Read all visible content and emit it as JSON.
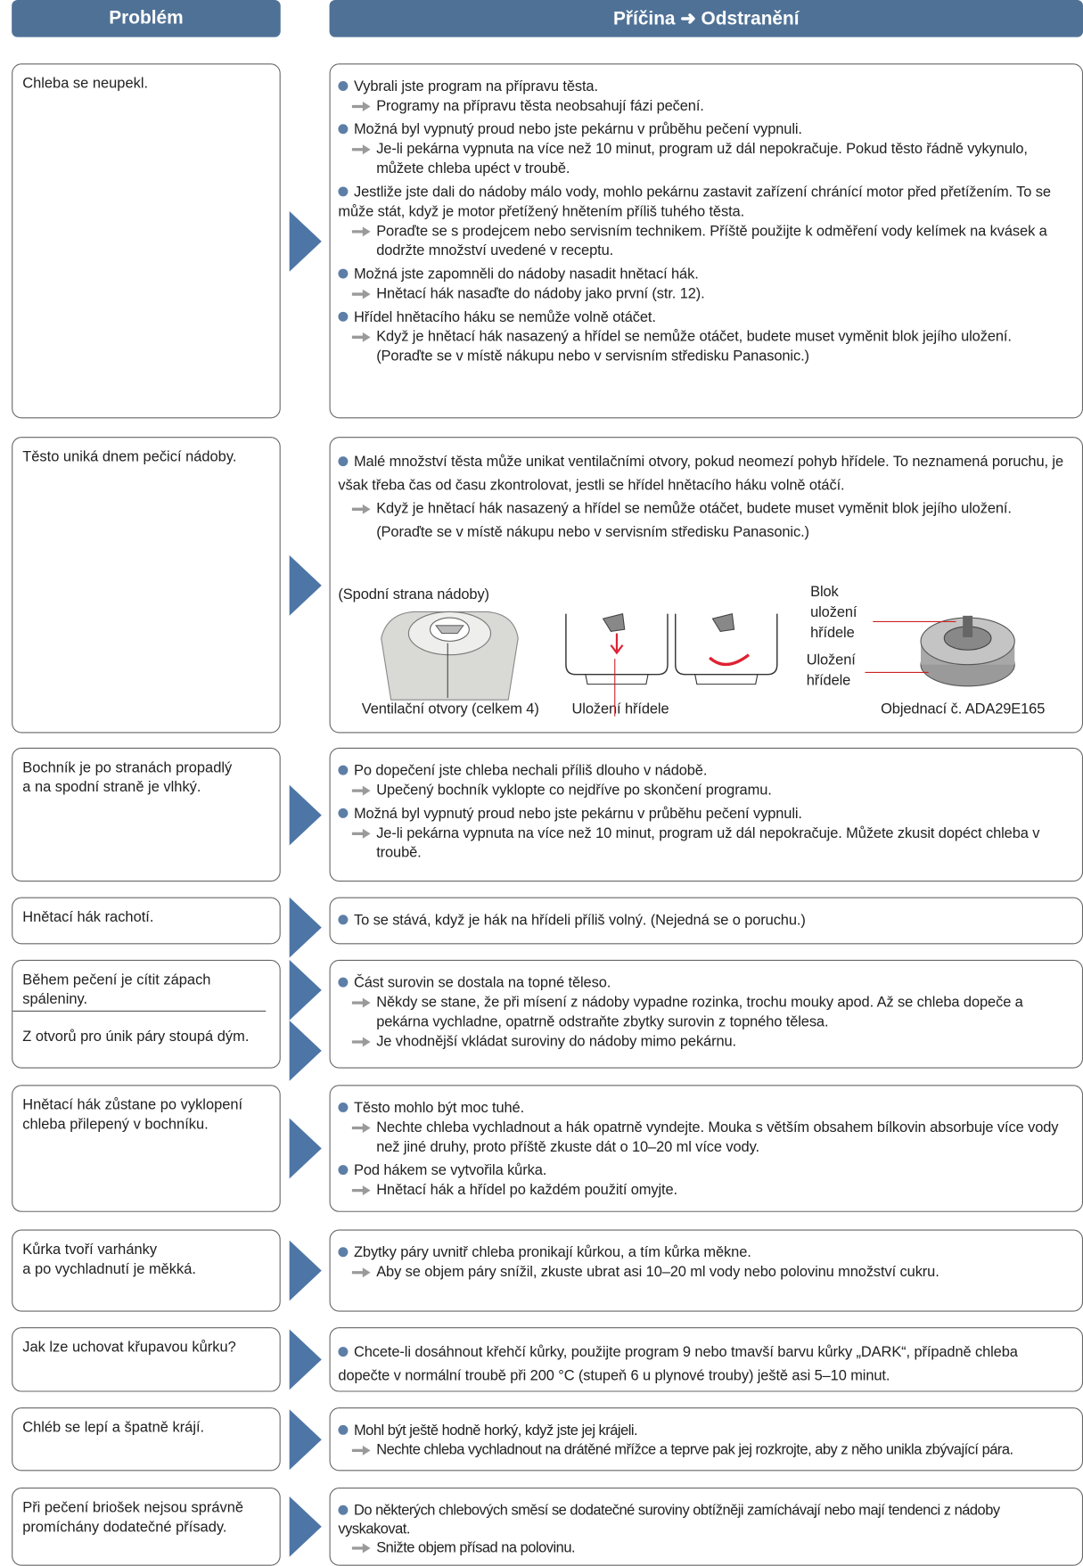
{
  "header": {
    "problem": "Problém",
    "solution": "Příčina ➜ Odstranění"
  },
  "rows": [
    {
      "problems": [
        "Chleba se neupekl."
      ],
      "items": [
        {
          "cause": "Vybrali jste program na přípravu těsta.",
          "remedies": [
            "Programy na přípravu těsta neobsahují fázi pečení."
          ]
        },
        {
          "cause": "Možná byl vypnutý proud nebo jste pekárnu v průběhu pečení vypnuli.",
          "remedies": [
            "Je-li pekárna vypnuta na více než 10 minut, program už dál nepokračuje. Pokud těsto řádně vykynulo, můžete chleba upéct v troubě."
          ]
        },
        {
          "cause": "Jestliže jste dali do nádoby málo vody, mohlo pekárnu zastavit zařízení chránící motor před přetížením. To se může stát, když je motor přetížený hnětením příliš tuhého těsta.",
          "remedies": [
            "Poraďte se s prodejcem nebo servisním technikem. Příště použijte k odměření vody kelímek na kvásek a dodržte množství uvedené v receptu."
          ]
        },
        {
          "cause": "Možná jste zapomněli do nádoby nasadit hnětací hák.",
          "remedies": [
            "Hnětací hák nasaďte do nádoby jako první (str. 12)."
          ]
        },
        {
          "cause": "Hřídel hnětacího háku se nemůže volně otáčet.",
          "remedies": [
            "Když je hnětací hák nasazený a hřídel se nemůže otáčet, budete muset vyměnit blok jejího uložení. (Poraďte se v místě nákupu nebo v servisním středisku Panasonic.)"
          ]
        }
      ]
    },
    {
      "problems": [
        "Těsto uniká dnem pečicí nádoby."
      ],
      "items": [
        {
          "cause": "Malé množství těsta může unikat ventilačními otvory, pokud neomezí pohyb hřídele. To neznamená poruchu, je však třeba čas od času zkontrolovat, jestli se hřídel hnětacího háku volně otáčí.",
          "remedies": [
            "Když je hnětací hák nasazený a hřídel se nemůže otáčet, budete muset vyměnit blok jejího uložení. (Poraďte se v místě nákupu nebo v servisním středisku Panasonic.)"
          ]
        }
      ],
      "figure": {
        "caption": "(Spodní strana nádoby)",
        "labels": [
          "Ventilační otvory (celkem 4)",
          "Uložení hřídele",
          "Blok\nuložení\nhřídele",
          "Uložení\nhřídele",
          "Objednací č. ADA29E165"
        ]
      }
    },
    {
      "problems": [
        "Bochník je po stranách propadlý\na na spodní straně je vlhký."
      ],
      "items": [
        {
          "cause": "Po dopečení jste chleba nechali příliš dlouho v nádobě.",
          "remedies": [
            "Upečený bochník vyklopte co nejdříve po skončení programu."
          ]
        },
        {
          "cause": "Možná byl vypnutý proud nebo jste pekárnu v průběhu pečení vypnuli.",
          "remedies": [
            "Je-li pekárna vypnuta na více než 10 minut, program už dál nepokračuje. Můžete zkusit dopéct chleba v troubě."
          ]
        }
      ]
    },
    {
      "problems": [
        "Hnětací hák rachotí."
      ],
      "items": [
        {
          "cause": "To se stává, když je hák na hřídeli příliš volný. (Nejedná se o poruchu.)",
          "remedies": []
        }
      ]
    },
    {
      "problems": [
        "Během pečení je cítit zápach\nspáleniny.",
        "Z otvorů pro únik páry stoupá dým."
      ],
      "items": [
        {
          "cause": "Část surovin se dostala na topné těleso.",
          "remedies": [
            "Někdy se stane, že při mísení z nádoby vypadne rozinka, trochu mouky apod. Až se chleba dopeče a pekárna vychladne, opatrně odstraňte zbytky surovin z topného tělesa.",
            "Je vhodnější vkládat suroviny do nádoby mimo pekárnu."
          ]
        }
      ]
    },
    {
      "problems": [
        "Hnětací hák zůstane po vyklopení\nchleba přilepený v bochníku."
      ],
      "items": [
        {
          "cause": "Těsto mohlo být moc tuhé.",
          "remedies": [
            "Nechte chleba vychladnout a hák opatrně vyndejte. Mouka s větším obsahem bílkovin absorbuje více vody než jiné druhy, proto příště zkuste dát o 10–20 ml více vody."
          ]
        },
        {
          "cause": "Pod hákem se vytvořila kůrka.",
          "remedies": [
            "Hnětací hák a hřídel po každém použití omyjte."
          ]
        }
      ]
    },
    {
      "problems": [
        "Kůrka tvoří varhánky\na po vychladnutí je měkká."
      ],
      "items": [
        {
          "cause": "Zbytky páry uvnitř chleba pronikají kůrkou, a tím kůrka měkne.",
          "remedies": [
            "Aby se objem páry snížil, zkuste ubrat asi 10–20 ml vody nebo polovinu množství cukru."
          ]
        }
      ]
    },
    {
      "problems": [
        "Jak lze uchovat křupavou kůrku?"
      ],
      "items": [
        {
          "cause": "Chcete-li dosáhnout křehčí kůrky, použijte program 9 nebo tmavší barvu kůrky „DARK“, případně chleba dopečte v normální troubě při 200 °C (stupeň 6 u plynové trouby) ještě asi 5–10 minut.",
          "remedies": []
        }
      ]
    },
    {
      "problems": [
        "Chléb se lepí a špatně krájí."
      ],
      "items": [
        {
          "cause": "Mohl být ještě hodně horký, když jste jej krájeli.",
          "remedies": [
            "Nechte chleba vychladnout na drátěné mřížce a teprve pak jej rozkrojte, aby z něho unikla zbývající pára."
          ]
        }
      ]
    },
    {
      "problems": [
        "Při pečení briošek nejsou správně\npromíchány dodatečné přísady."
      ],
      "items": [
        {
          "cause": "Do některých chlebových směsí se dodatečné suroviny obtížněji zamíchávají nebo mají tendenci z nádoby vyskakovat.",
          "remedies": [
            "Snižte objem přísad na polovinu."
          ]
        }
      ]
    }
  ]
}
